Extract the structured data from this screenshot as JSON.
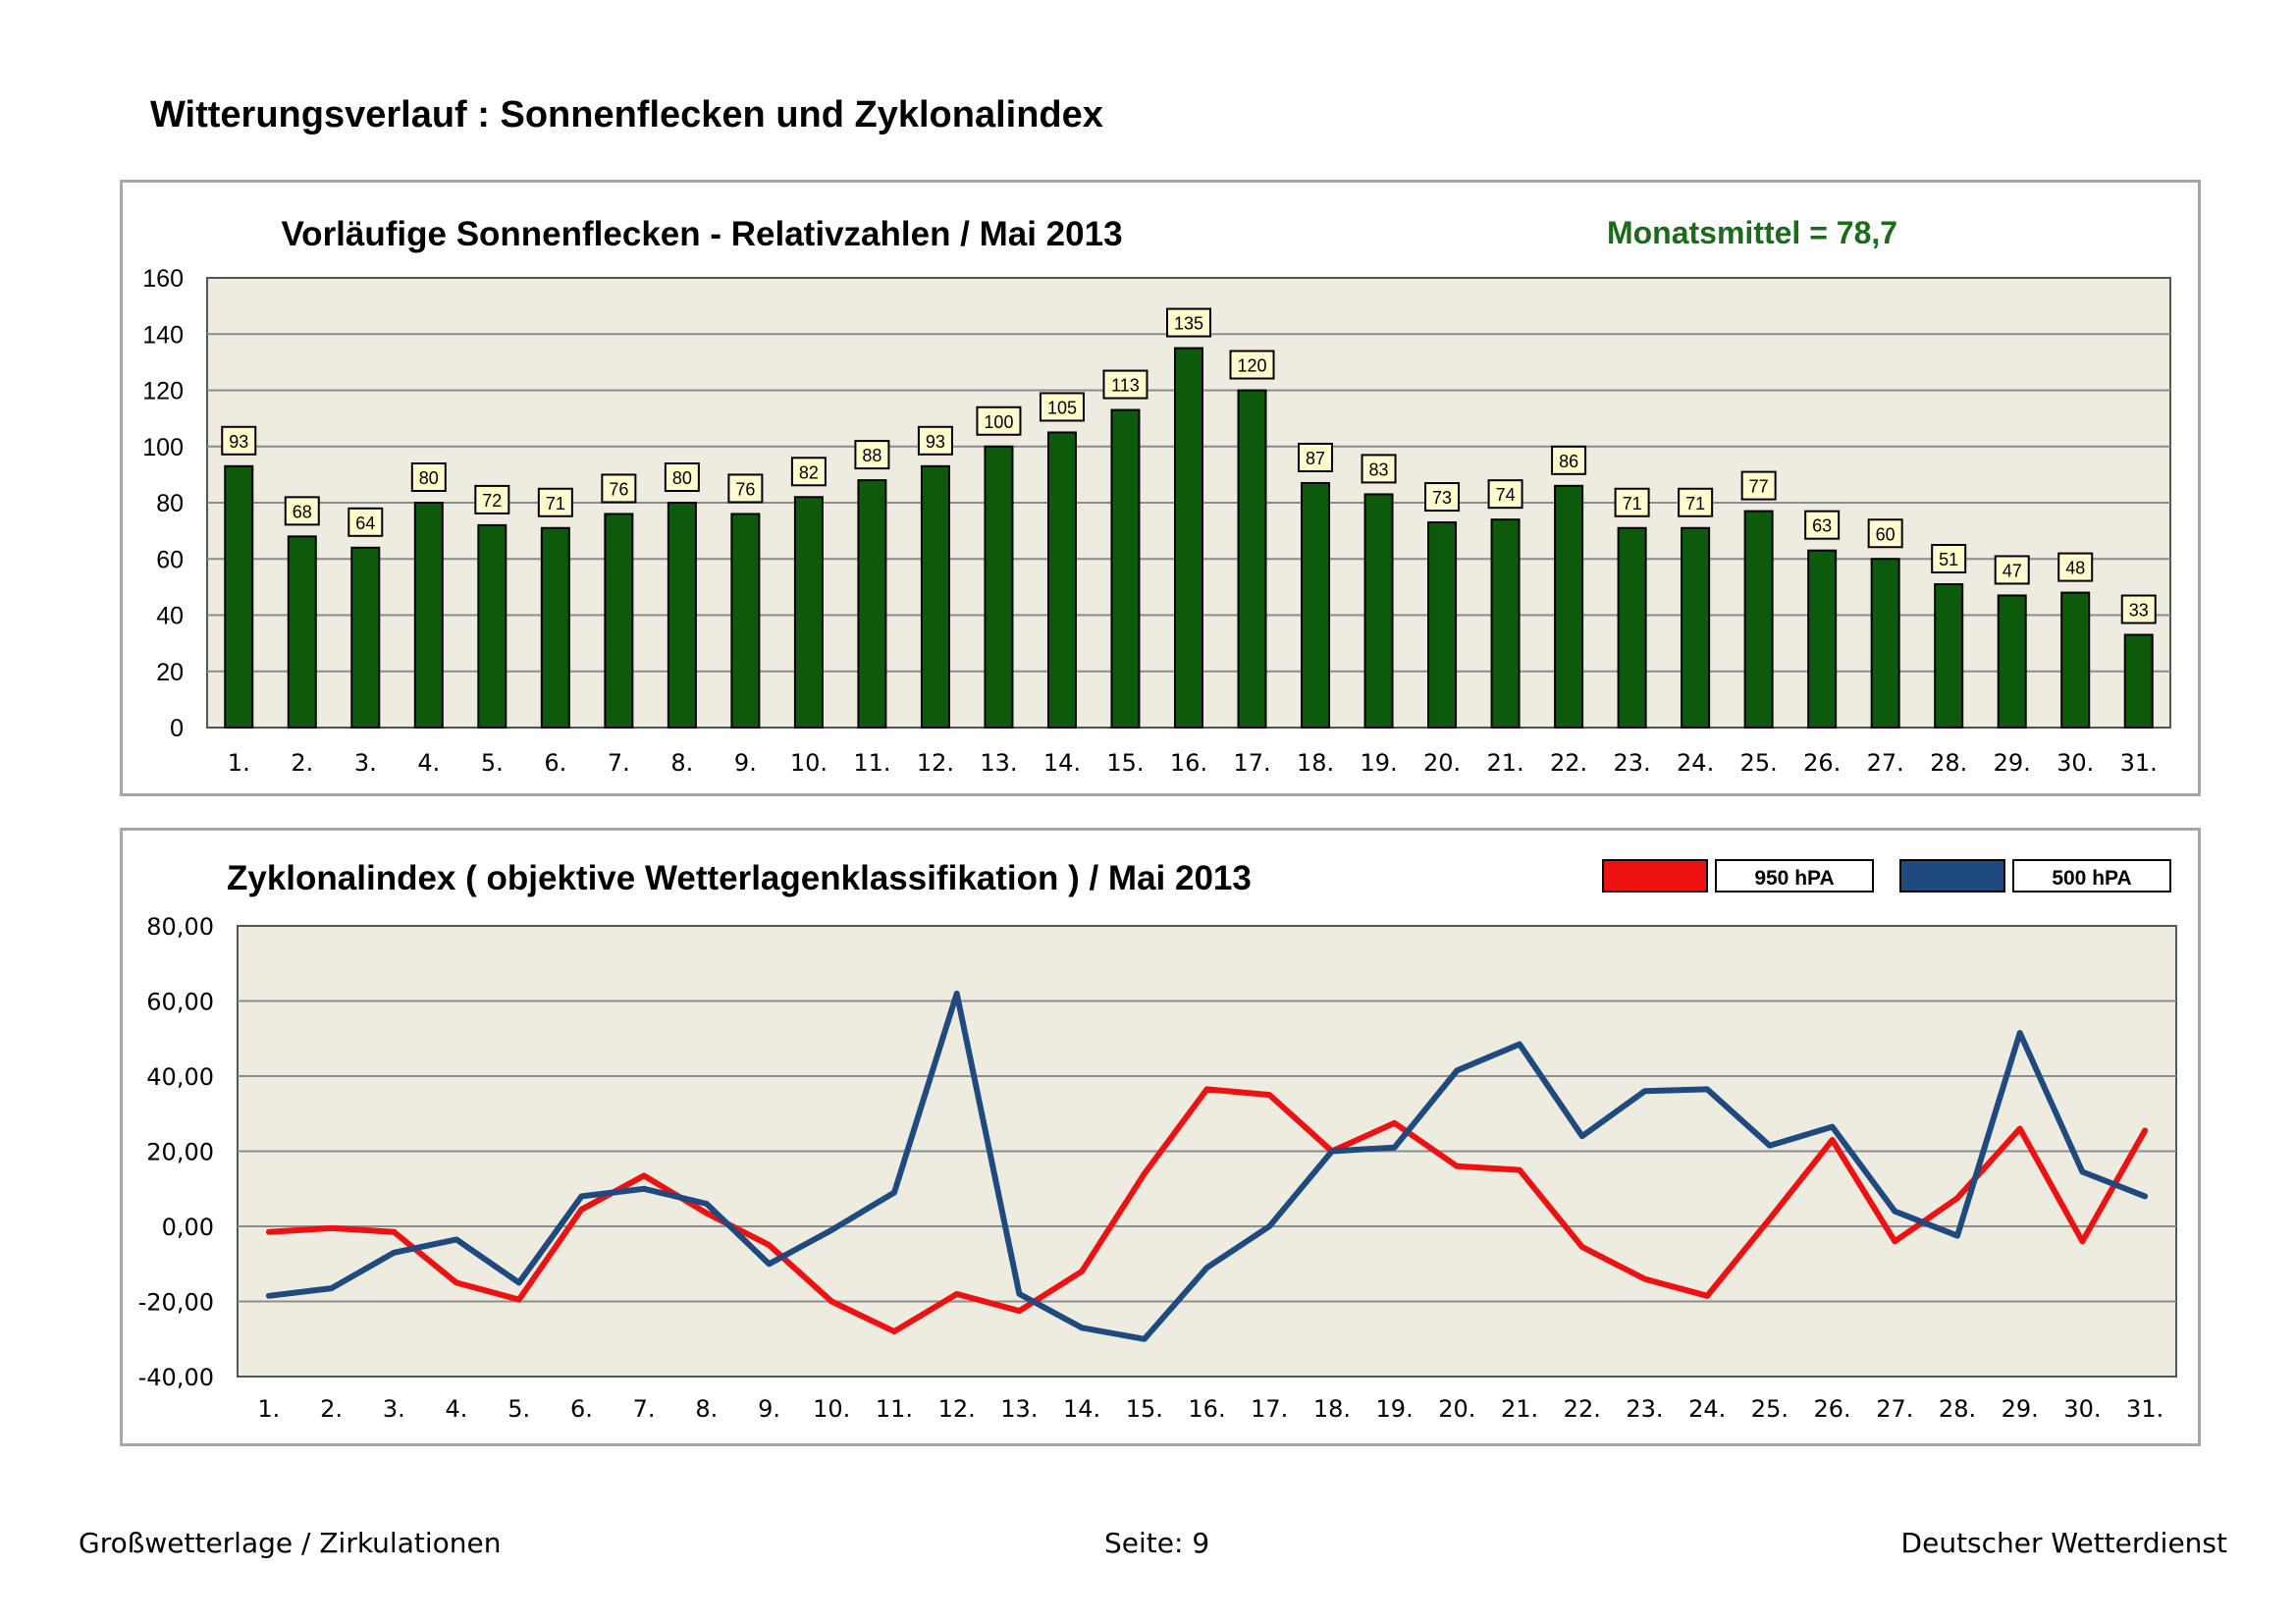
{
  "page": {
    "title": "Witterungsverlauf : Sonnenflecken und Zyklonalindex",
    "footer_left": "Großwetterlage / Zirkulationen",
    "footer_center": "Seite: 9",
    "footer_right": "Deutscher Wetterdienst"
  },
  "colors": {
    "plot_bg": "#eeebe1",
    "bar": "#0d5a0d",
    "red_line": "#ee1111",
    "blue_line": "#1f4a7f",
    "monatsmittel": "#1a6b1a",
    "label_box": "#fffbcc"
  },
  "chart_data": [
    {
      "type": "bar",
      "title": "Vorläufige Sonnenflecken - Relativzahlen   /   Mai 2013",
      "annotation": "Monatsmittel = 78,7",
      "categories": [
        "1.",
        "2.",
        "3.",
        "4.",
        "5.",
        "6.",
        "7.",
        "8.",
        "9.",
        "10.",
        "11.",
        "12.",
        "13.",
        "14.",
        "15.",
        "16.",
        "17.",
        "18.",
        "19.",
        "20.",
        "21.",
        "22.",
        "23.",
        "24.",
        "25.",
        "26.",
        "27.",
        "28.",
        "29.",
        "30.",
        "31."
      ],
      "values": [
        93,
        68,
        64,
        80,
        72,
        71,
        76,
        80,
        76,
        82,
        88,
        93,
        100,
        105,
        113,
        135,
        120,
        87,
        83,
        73,
        74,
        86,
        71,
        71,
        77,
        63,
        60,
        51,
        47,
        48,
        33
      ],
      "ylim": [
        0,
        160
      ],
      "yticks": [
        "0",
        "20",
        "40",
        "60",
        "80",
        "100",
        "120",
        "140",
        "160"
      ],
      "xlabel": "",
      "ylabel": "",
      "grid": true
    },
    {
      "type": "line",
      "title": "Zyklonalindex  ( objektive Wetterlagenklassifikation )  /  Mai 2013",
      "categories": [
        "1.",
        "2.",
        "3.",
        "4.",
        "5.",
        "6.",
        "7.",
        "8.",
        "9.",
        "10.",
        "11.",
        "12.",
        "13.",
        "14.",
        "15.",
        "16.",
        "17.",
        "18.",
        "19.",
        "20.",
        "21.",
        "22.",
        "23.",
        "24.",
        "25.",
        "26.",
        "27.",
        "28.",
        "29.",
        "30.",
        "31."
      ],
      "ylim": [
        -40,
        80
      ],
      "yticks": [
        "-40,00",
        "-20,00",
        "0,00",
        "20,00",
        "40,00",
        "60,00",
        "80,00"
      ],
      "legend": "top-right",
      "series": [
        {
          "name": "950 hPA",
          "color": "#ee1111",
          "values": [
            -1.5,
            -0.5,
            -1.5,
            -15,
            -19.5,
            4.5,
            13.5,
            3.5,
            -5,
            -20,
            -28,
            -18,
            -22.5,
            -12,
            14,
            36.5,
            35,
            20,
            27.5,
            16,
            15,
            -5.5,
            -14,
            -18.5,
            2,
            23,
            -4,
            7.5,
            26,
            -4,
            25.5
          ]
        },
        {
          "name": "500 hPA",
          "color": "#1f4a7f",
          "values": [
            -18.5,
            -16.5,
            -7,
            -3.5,
            -15,
            8,
            10,
            6,
            -10,
            -1,
            9,
            62,
            -18,
            -27,
            -30,
            -11,
            0,
            20,
            21,
            41.5,
            48.5,
            24,
            36,
            36.5,
            21.5,
            26.5,
            4,
            -2.5,
            51.5,
            14.5,
            8
          ]
        }
      ]
    }
  ]
}
